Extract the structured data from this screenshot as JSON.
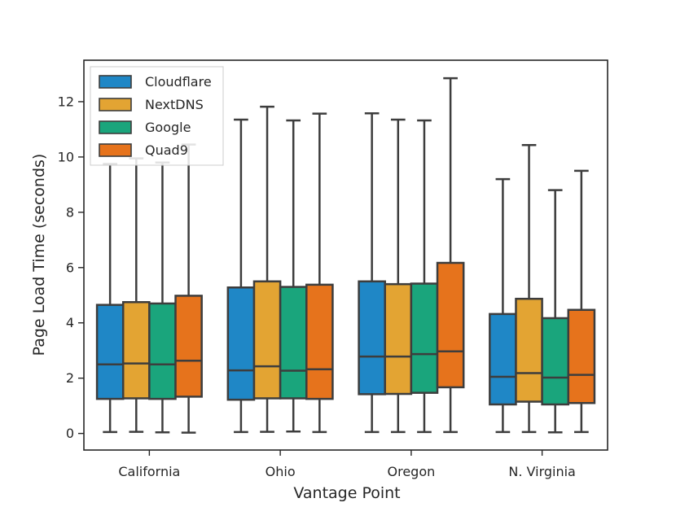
{
  "chart_data": {
    "type": "boxplot",
    "title": "",
    "xlabel": "Vantage Point",
    "ylabel": "Page Load Time (seconds)",
    "ylim": [
      -0.6,
      13.5
    ],
    "yticks": [
      0,
      2,
      4,
      6,
      8,
      10,
      12
    ],
    "grid": false,
    "legend_position": "top-left",
    "categories": [
      "California",
      "Ohio",
      "Oregon",
      "N. Virginia"
    ],
    "series": [
      {
        "name": "Cloudflare",
        "color": "#1f87c6",
        "boxes": [
          {
            "whisker_low": 0.05,
            "q1": 1.25,
            "median": 2.5,
            "q3": 4.65,
            "whisker_high": 9.75
          },
          {
            "whisker_low": 0.05,
            "q1": 1.22,
            "median": 2.28,
            "q3": 5.28,
            "whisker_high": 11.35
          },
          {
            "whisker_low": 0.05,
            "q1": 1.42,
            "median": 2.78,
            "q3": 5.5,
            "whisker_high": 11.58
          },
          {
            "whisker_low": 0.05,
            "q1": 1.05,
            "median": 2.05,
            "q3": 4.32,
            "whisker_high": 9.2
          }
        ]
      },
      {
        "name": "NextDNS",
        "color": "#e3a433",
        "boxes": [
          {
            "whisker_low": 0.06,
            "q1": 1.27,
            "median": 2.53,
            "q3": 4.75,
            "whisker_high": 9.95
          },
          {
            "whisker_low": 0.06,
            "q1": 1.27,
            "median": 2.43,
            "q3": 5.5,
            "whisker_high": 11.82
          },
          {
            "whisker_low": 0.05,
            "q1": 1.43,
            "median": 2.78,
            "q3": 5.4,
            "whisker_high": 11.35
          },
          {
            "whisker_low": 0.05,
            "q1": 1.15,
            "median": 2.18,
            "q3": 4.87,
            "whisker_high": 10.43
          }
        ]
      },
      {
        "name": "Google",
        "color": "#1aa57c",
        "boxes": [
          {
            "whisker_low": 0.04,
            "q1": 1.25,
            "median": 2.5,
            "q3": 4.7,
            "whisker_high": 9.8
          },
          {
            "whisker_low": 0.07,
            "q1": 1.27,
            "median": 2.27,
            "q3": 5.3,
            "whisker_high": 11.32
          },
          {
            "whisker_low": 0.05,
            "q1": 1.47,
            "median": 2.87,
            "q3": 5.42,
            "whisker_high": 11.32
          },
          {
            "whisker_low": 0.04,
            "q1": 1.05,
            "median": 2.02,
            "q3": 4.17,
            "whisker_high": 8.8
          }
        ]
      },
      {
        "name": "Quad9",
        "color": "#e6731c",
        "boxes": [
          {
            "whisker_low": 0.03,
            "q1": 1.33,
            "median": 2.63,
            "q3": 4.98,
            "whisker_high": 10.45
          },
          {
            "whisker_low": 0.05,
            "q1": 1.25,
            "median": 2.32,
            "q3": 5.38,
            "whisker_high": 11.57
          },
          {
            "whisker_low": 0.05,
            "q1": 1.67,
            "median": 2.97,
            "q3": 6.17,
            "whisker_high": 12.85
          },
          {
            "whisker_low": 0.05,
            "q1": 1.1,
            "median": 2.12,
            "q3": 4.47,
            "whisker_high": 9.5
          }
        ]
      }
    ]
  }
}
